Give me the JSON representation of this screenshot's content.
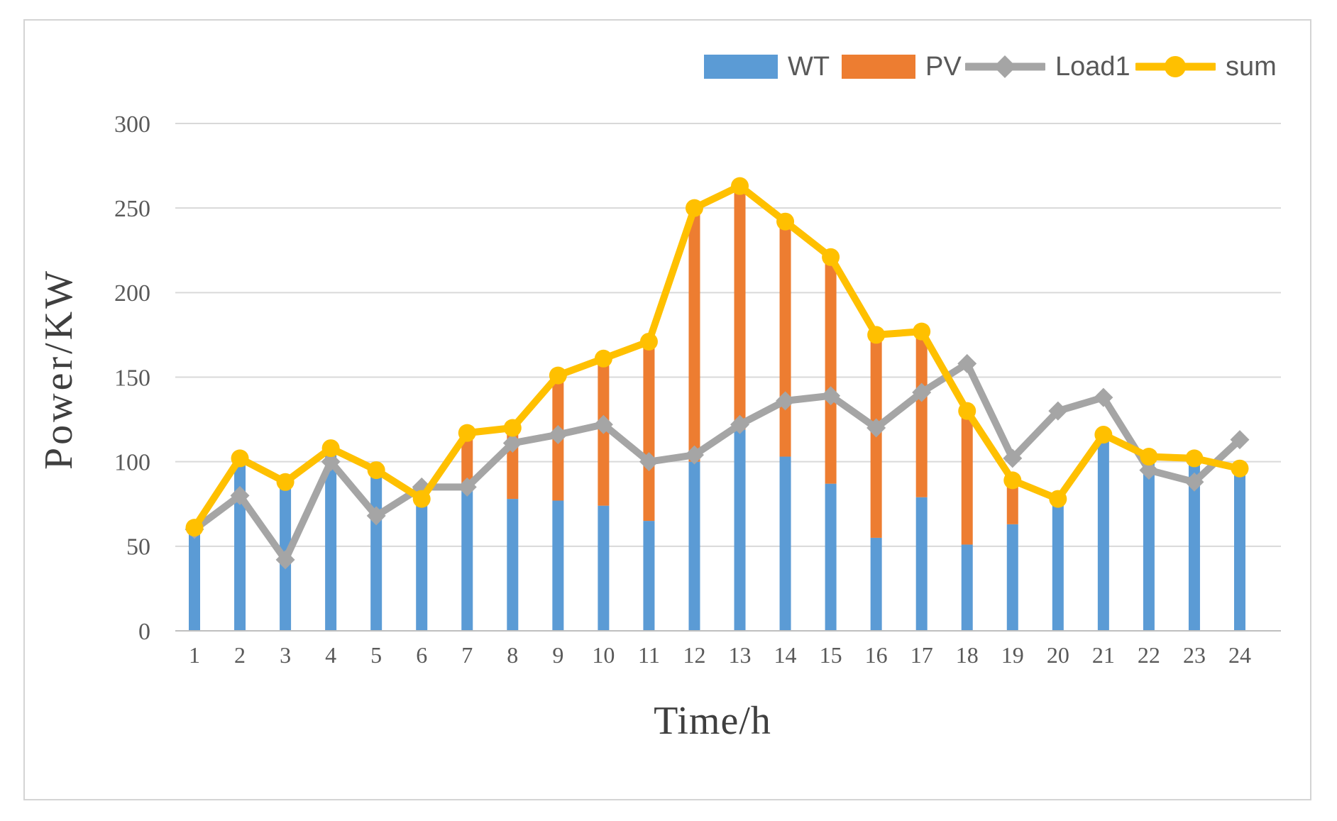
{
  "figure": {
    "background": "#ffffff",
    "frame_color": "#d4d4d4"
  },
  "styles": {
    "grid_color": "#d9d9d9",
    "axis_line_color": "#bfbfbf",
    "tick_text_color": "#595959",
    "title_text_color": "#3f3f3f",
    "legend_text_color": "#595959"
  },
  "chart_data": {
    "type": "combo",
    "title": "",
    "xlabel": "Time/h",
    "ylabel": "Power/KW",
    "x": [
      "1",
      "2",
      "3",
      "4",
      "5",
      "6",
      "7",
      "8",
      "9",
      "10",
      "11",
      "12",
      "13",
      "14",
      "15",
      "16",
      "17",
      "18",
      "19",
      "20",
      "21",
      "22",
      "23",
      "24"
    ],
    "ylim": [
      0,
      300
    ],
    "yticks": [
      0,
      50,
      100,
      150,
      200,
      250,
      300
    ],
    "grid": true,
    "legend_position": "top-right",
    "series": [
      {
        "name": "WT",
        "type": "bar",
        "stacked": true,
        "color": "#5B9BD5",
        "values": [
          61,
          102,
          88,
          108,
          95,
          78,
          83,
          78,
          77,
          74,
          65,
          100,
          119,
          103,
          87,
          55,
          79,
          51,
          63,
          78,
          116,
          103,
          102,
          96
        ]
      },
      {
        "name": "PV",
        "type": "bar",
        "stacked": true,
        "color": "#ED7D31",
        "values": [
          0,
          0,
          0,
          0,
          0,
          0,
          34,
          42,
          74,
          87,
          106,
          150,
          144,
          139,
          134,
          120,
          98,
          79,
          26,
          0,
          0,
          0,
          0,
          0
        ]
      },
      {
        "name": "Load1",
        "type": "line",
        "marker": "diamond",
        "color": "#A5A5A5",
        "values": [
          60,
          80,
          42,
          100,
          68,
          85,
          85,
          111,
          116,
          122,
          100,
          104,
          122,
          136,
          139,
          120,
          141,
          158,
          102,
          130,
          138,
          95,
          88,
          113
        ]
      },
      {
        "name": "sum",
        "type": "line",
        "marker": "circle",
        "color": "#FFC000",
        "values": [
          61,
          102,
          88,
          108,
          95,
          78,
          117,
          120,
          151,
          161,
          171,
          250,
          263,
          242,
          221,
          175,
          177,
          130,
          89,
          78,
          116,
          103,
          102,
          96
        ]
      }
    ]
  }
}
